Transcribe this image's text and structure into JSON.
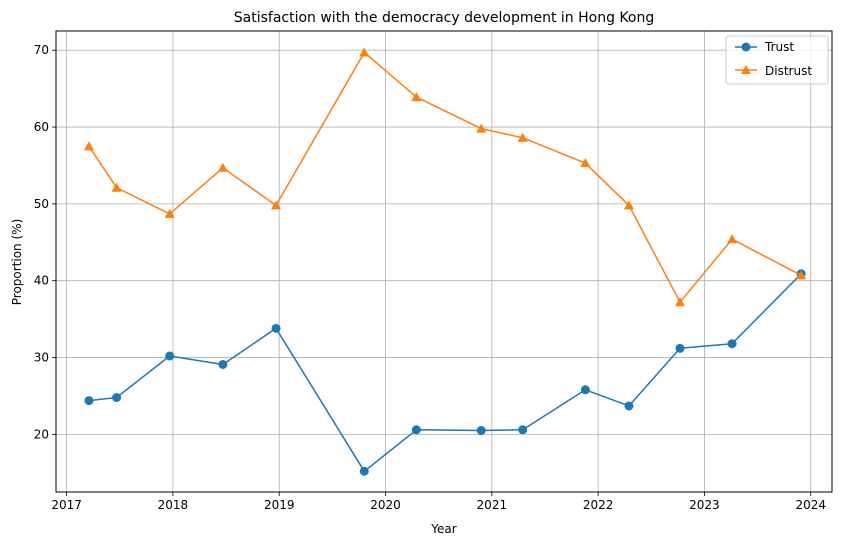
{
  "chart_data": {
    "type": "line",
    "title": "Satisfaction with the democracy development in Hong Kong",
    "xlabel": "Year",
    "ylabel": "Proportion (%)",
    "xlim": [
      2016.9,
      2024.2
    ],
    "ylim": [
      12.5,
      72.5
    ],
    "xticks": [
      2017,
      2018,
      2019,
      2020,
      2021,
      2022,
      2023,
      2024
    ],
    "yticks": [
      20,
      30,
      40,
      50,
      60,
      70
    ],
    "grid": true,
    "legend_position": "top-right",
    "x": [
      2017.21,
      2017.47,
      2017.97,
      2018.47,
      2018.97,
      2019.8,
      2020.29,
      2020.9,
      2021.29,
      2021.88,
      2022.29,
      2022.77,
      2023.26,
      2023.91
    ],
    "series": [
      {
        "name": "Trust",
        "color": "#1f77b4",
        "marker": "circle",
        "values": [
          24.4,
          24.8,
          30.2,
          29.1,
          33.8,
          15.2,
          20.6,
          20.5,
          20.6,
          25.8,
          23.7,
          31.2,
          31.8,
          40.9
        ]
      },
      {
        "name": "Distrust",
        "color": "#ff7f0e",
        "marker": "triangle",
        "values": [
          57.5,
          52.1,
          48.7,
          54.7,
          49.8,
          69.7,
          63.9,
          59.8,
          58.6,
          55.3,
          49.8,
          37.2,
          45.4,
          40.7
        ]
      }
    ]
  }
}
